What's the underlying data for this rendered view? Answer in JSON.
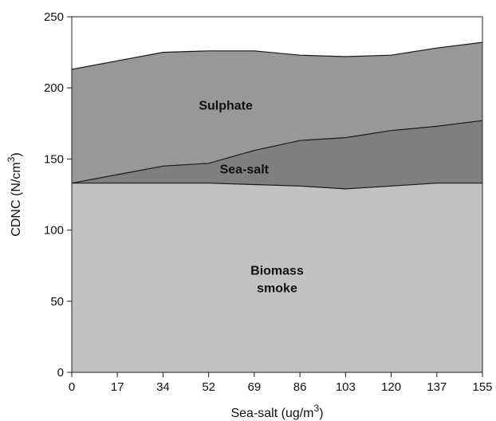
{
  "chart_data": {
    "type": "area",
    "stacked": true,
    "categories": [
      "0",
      "17",
      "34",
      "52",
      "69",
      "86",
      "103",
      "120",
      "137",
      "155"
    ],
    "y_ticks": [
      "0",
      "50",
      "100",
      "150",
      "200",
      "250"
    ],
    "ylim": [
      0,
      250
    ],
    "grid": false,
    "legend": "none",
    "xlabel": {
      "text": "Sea-salt (ug/m",
      "sup": "3",
      "suffix": ")"
    },
    "ylabel": {
      "text": "CDNC (N/cm",
      "sup": "3",
      "suffix": ")"
    },
    "series": [
      {
        "key": "biomass",
        "label_lines": [
          "Biomass",
          "smoke"
        ],
        "color": "#c2c2c2",
        "totals": [
          133,
          133,
          133,
          133,
          132,
          131,
          129,
          131,
          133,
          133
        ]
      },
      {
        "key": "seasalt",
        "label_lines": [
          "Sea-salt"
        ],
        "color": "#7f7f7f",
        "totals": [
          133,
          139,
          145,
          147,
          156,
          163,
          165,
          170,
          173,
          177
        ]
      },
      {
        "key": "sulphate",
        "label_lines": [
          "Sulphate"
        ],
        "color": "#989898",
        "totals": [
          213,
          219,
          225,
          226,
          226,
          223,
          222,
          223,
          228,
          232
        ]
      }
    ]
  }
}
